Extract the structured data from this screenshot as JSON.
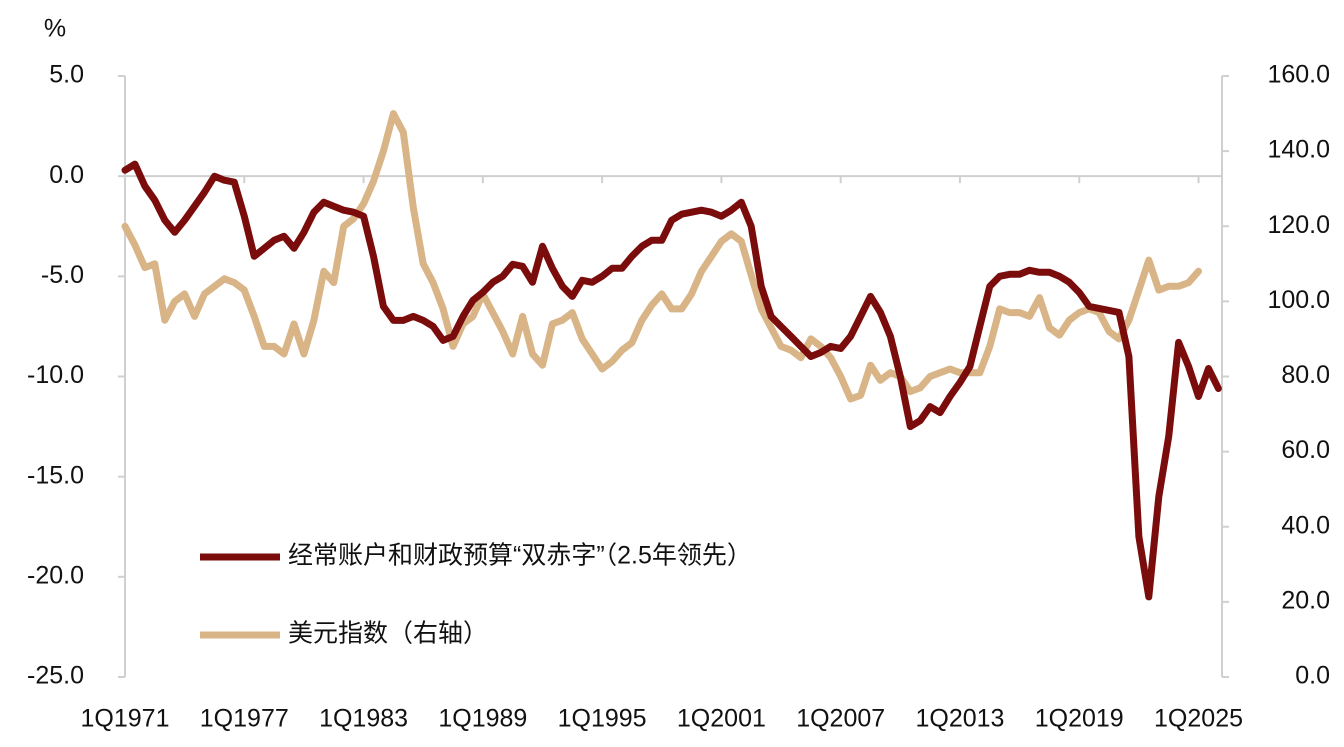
{
  "chart_data": {
    "type": "line",
    "y_unit": "%",
    "categories": [
      "1Q1971",
      null,
      null,
      null,
      null,
      null,
      null,
      null,
      null,
      null,
      null,
      null,
      "1Q1977",
      null,
      null,
      null,
      null,
      null,
      null,
      null,
      null,
      null,
      null,
      null,
      "1Q1983",
      null,
      null,
      null,
      null,
      null,
      null,
      null,
      null,
      null,
      null,
      null,
      "1Q1989",
      null,
      null,
      null,
      null,
      null,
      null,
      null,
      null,
      null,
      null,
      null,
      "1Q1995",
      null,
      null,
      null,
      null,
      null,
      null,
      null,
      null,
      null,
      null,
      null,
      "1Q2001",
      null,
      null,
      null,
      null,
      null,
      null,
      null,
      null,
      null,
      null,
      null,
      "1Q2007",
      null,
      null,
      null,
      null,
      null,
      null,
      null,
      null,
      null,
      null,
      null,
      "1Q2013",
      null,
      null,
      null,
      null,
      null,
      null,
      null,
      null,
      null,
      null,
      null,
      "1Q2019",
      null,
      null,
      null,
      null,
      null,
      null,
      null,
      null,
      null,
      null,
      null,
      "1Q2025",
      null,
      null
    ],
    "series": [
      {
        "name": "经常账户和财政预算“双赤字”（2.5年领先）",
        "color": "#7b0c0c",
        "axis": "y",
        "values": [
          0.3,
          0.6,
          -0.5,
          -1.2,
          -2.2,
          -2.8,
          -2.2,
          -1.5,
          -0.8,
          0.0,
          -0.2,
          -0.3,
          -2.0,
          -4.0,
          -3.6,
          -3.2,
          -3.0,
          -3.6,
          -2.8,
          -1.8,
          -1.3,
          -1.5,
          -1.7,
          -1.8,
          -2.0,
          -4.0,
          -6.5,
          -7.2,
          -7.2,
          -7.0,
          -7.2,
          -7.5,
          -8.2,
          -8.0,
          -7.0,
          -6.2,
          -5.8,
          -5.3,
          -5.0,
          -4.4,
          -4.5,
          -5.3,
          -3.5,
          -4.6,
          -5.5,
          -6.0,
          -5.2,
          -5.3,
          -5.0,
          -4.6,
          -4.6,
          -4.0,
          -3.5,
          -3.2,
          -3.2,
          -2.2,
          -1.9,
          -1.8,
          -1.7,
          -1.8,
          -2.0,
          -1.7,
          -1.3,
          -2.5,
          -5.5,
          -7.0,
          -7.5,
          -8.0,
          -8.5,
          -9.0,
          -8.8,
          -8.5,
          -8.6,
          -8.0,
          -7.0,
          -6.0,
          -6.8,
          -8.0,
          -10.0,
          -12.5,
          -12.2,
          -11.5,
          -11.8,
          -11.0,
          -10.3,
          -9.5,
          -7.5,
          -5.5,
          -5.0,
          -4.9,
          -4.9,
          -4.7,
          -4.8,
          -4.8,
          -5.0,
          -5.3,
          -5.8,
          -6.5,
          -6.6,
          -6.7,
          -6.8,
          -9.0,
          -18.0,
          -21.0,
          -16.0,
          -13.0,
          -8.3,
          -9.5,
          -11.0,
          -9.6,
          -10.6
        ]
      },
      {
        "name": "美元指数（右轴）",
        "color": "#d8b486",
        "axis": "y2",
        "values": [
          120,
          115,
          109,
          110,
          95,
          100,
          102,
          96,
          102,
          104,
          106,
          105,
          103,
          96,
          88,
          88,
          86,
          94,
          86,
          95,
          108,
          105,
          120,
          122,
          126,
          132,
          140,
          150,
          145,
          125,
          110,
          105,
          98,
          88,
          94,
          96,
          102,
          97,
          92,
          86,
          96,
          86,
          83,
          94,
          95,
          97,
          90,
          86,
          82,
          84,
          87,
          89,
          95,
          99,
          102,
          98,
          98,
          102,
          108,
          112,
          116,
          118,
          116,
          107,
          98,
          93,
          88,
          87,
          85,
          90,
          88,
          85,
          80,
          74,
          75,
          83,
          79,
          81,
          80,
          76,
          77,
          80,
          81,
          82,
          81,
          81,
          81,
          88,
          98,
          97,
          97,
          96,
          101,
          93,
          91,
          95,
          97,
          98,
          97,
          92,
          90,
          95,
          103,
          111,
          103,
          104,
          104,
          105,
          108,
          null,
          null
        ]
      }
    ],
    "ylim": [
      -25,
      5
    ],
    "yticks": [
      {
        "value": -25,
        "label": "-25.0"
      },
      {
        "value": -20,
        "label": "-20.0"
      },
      {
        "value": -15,
        "label": "-15.0"
      },
      {
        "value": -10,
        "label": "-10.0"
      },
      {
        "value": -5,
        "label": "-5.0"
      },
      {
        "value": 0,
        "label": "0.0"
      },
      {
        "value": 5,
        "label": "5.0"
      }
    ],
    "y2lim": [
      0,
      160
    ],
    "y2ticks": [
      {
        "value": 0,
        "label": "0.0"
      },
      {
        "value": 20,
        "label": "20.0"
      },
      {
        "value": 40,
        "label": "40.0"
      },
      {
        "value": 60,
        "label": "60.0"
      },
      {
        "value": 80,
        "label": "80.0"
      },
      {
        "value": 100,
        "label": "100.0"
      },
      {
        "value": 120,
        "label": "120.0"
      },
      {
        "value": 140,
        "label": "140.0"
      },
      {
        "value": 160,
        "label": "160.0"
      }
    ],
    "legend": "lower left"
  }
}
